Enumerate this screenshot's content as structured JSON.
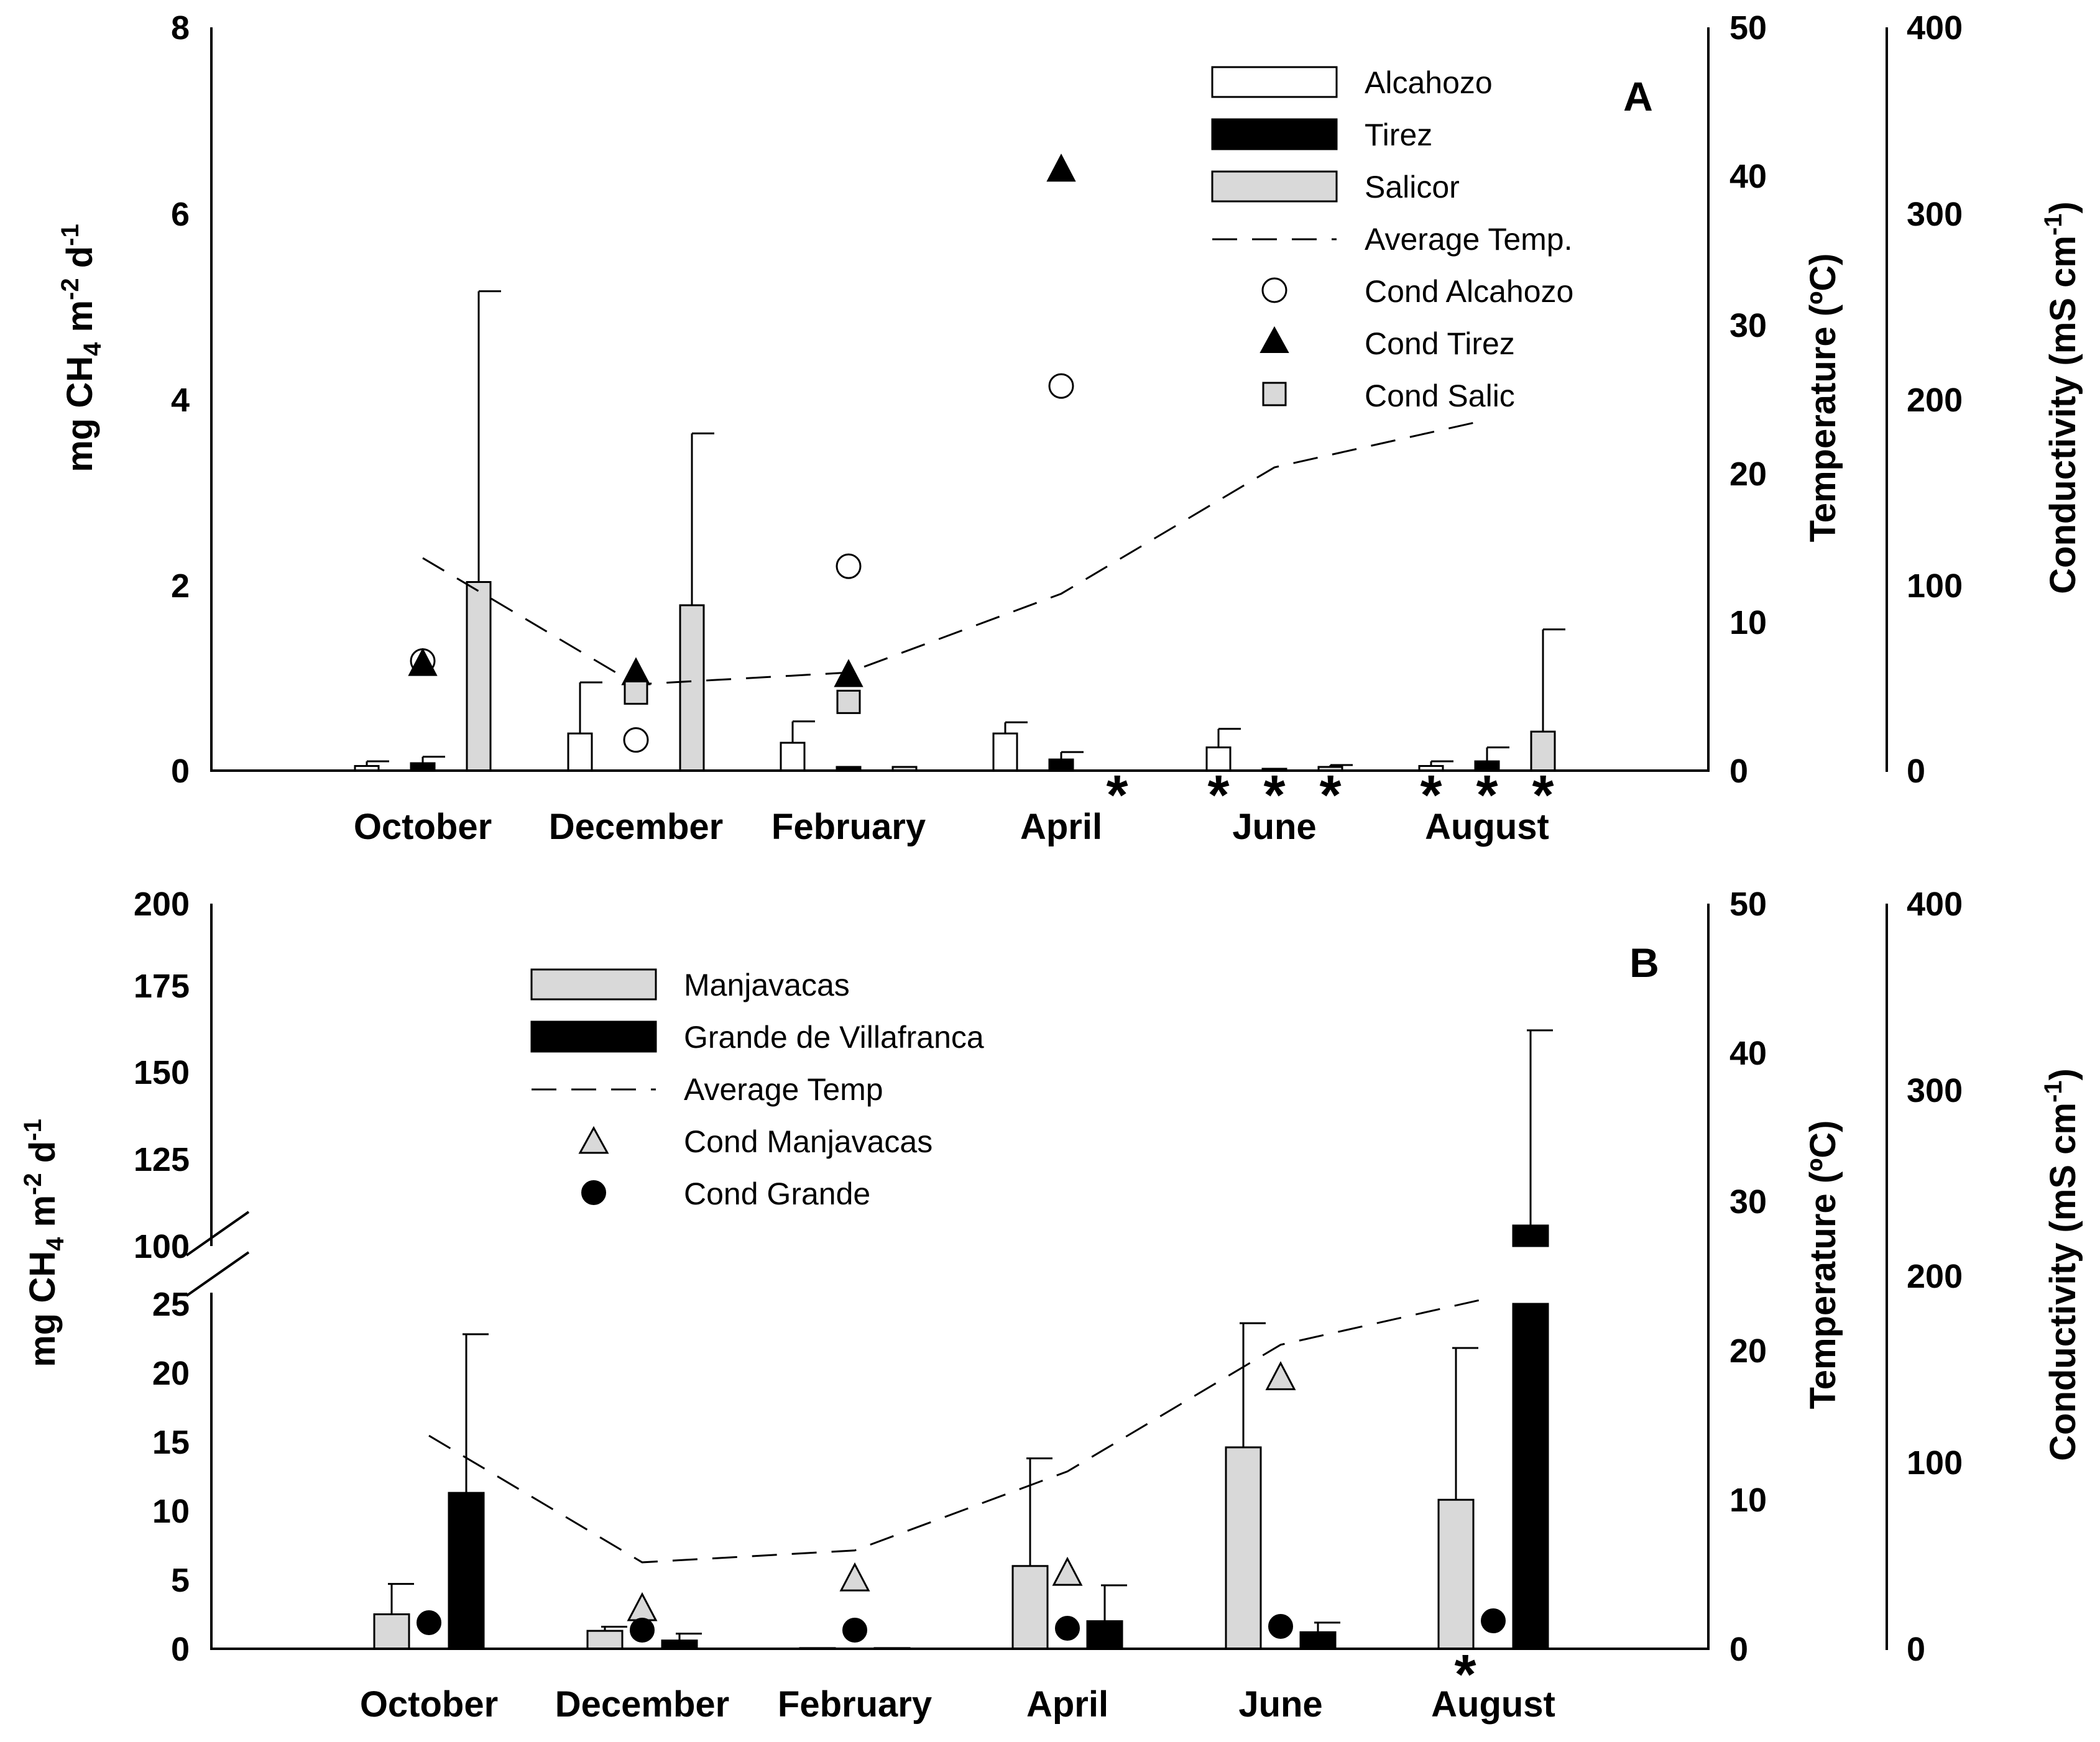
{
  "chart_data": [
    {
      "panel": "A",
      "type": "bar",
      "panel_label": "A",
      "categories": [
        "October",
        "December",
        "February",
        "April",
        "June",
        "August"
      ],
      "ylabel": "mg CH4 m-2 d-1",
      "y_ticks": [
        "0",
        "2",
        "4",
        "6",
        "8"
      ],
      "ylim": [
        0,
        8
      ],
      "series": [
        {
          "name": "Alcahozo",
          "color": "#ffffff",
          "values": [
            0.05,
            0.4,
            0.3,
            0.4,
            0.25,
            0.05
          ],
          "errors": [
            0.05,
            0.55,
            0.23,
            0.12,
            0.2,
            0.05
          ]
        },
        {
          "name": "Tirez",
          "color": "#000000",
          "values": [
            0.08,
            0.0,
            0.04,
            0.12,
            0.02,
            0.1
          ],
          "errors": [
            0.07,
            0.0,
            0.0,
            0.08,
            0.0,
            0.15
          ]
        },
        {
          "name": "Salicor",
          "color": "#d9d9d9",
          "values": [
            2.03,
            1.78,
            0.04,
            0.0,
            0.04,
            0.42
          ],
          "errors": [
            3.13,
            1.85,
            0.0,
            0.0,
            0.02,
            1.1
          ]
        }
      ],
      "temperature": {
        "name": "Average Temp.",
        "axis_label": "Temperature (ºC)",
        "y_ticks": [
          "0",
          "10",
          "20",
          "30",
          "40",
          "50"
        ],
        "ylim": [
          0,
          50
        ],
        "values": [
          14.3,
          5.8,
          6.6,
          11.9,
          20.4,
          23.6
        ]
      },
      "conductivity": {
        "axis_label": "Conductivity (mS cm-1)",
        "y_ticks": [
          "0",
          "100",
          "200",
          "300",
          "400"
        ],
        "ylim": [
          0,
          400
        ],
        "series": [
          {
            "name": "Cond Alcahozo",
            "marker": "circle-open",
            "values": [
              59,
              16.5,
              110,
              207,
              null,
              null
            ]
          },
          {
            "name": "Cond Tirez",
            "marker": "triangle-filled",
            "values": [
              58,
              53,
              52,
              324,
              null,
              null
            ]
          },
          {
            "name": "Cond Salic",
            "marker": "square-gray",
            "values": [
              null,
              42,
              37,
              null,
              null,
              null
            ]
          }
        ]
      },
      "significance_marks": [
        {
          "category": "April",
          "text": "*",
          "count": 1
        },
        {
          "category": "June",
          "text": "*",
          "count": 3
        },
        {
          "category": "August",
          "text": "*",
          "count": 3
        }
      ],
      "legend": [
        "Alcahozo",
        "Tirez",
        "Salicor",
        "Average Temp.",
        "Cond Alcahozo",
        "Cond Tirez",
        "Cond Salic"
      ],
      "legend_position": "top-right"
    },
    {
      "panel": "B",
      "type": "bar",
      "panel_label": "B",
      "categories": [
        "October",
        "December",
        "February",
        "April",
        "June",
        "August"
      ],
      "ylabel": "mg CH4 m-2 d-1",
      "y_ticks_lower": [
        "0",
        "5",
        "10",
        "15",
        "20",
        "25"
      ],
      "y_ticks_upper": [
        "100",
        "125",
        "150",
        "175",
        "200"
      ],
      "ylim_lower": [
        0,
        25
      ],
      "ylim_upper": [
        100,
        200
      ],
      "axis_break": "between 25 and 100",
      "series": [
        {
          "name": "Manjavacas",
          "color": "#d9d9d9",
          "values": [
            2.5,
            1.3,
            0.05,
            6.0,
            14.6,
            10.8
          ],
          "errors": [
            2.2,
            0.3,
            0.0,
            7.8,
            9.0,
            11.0
          ]
        },
        {
          "name": "Grande de Villafranca",
          "color": "#000000",
          "values": [
            11.3,
            0.6,
            0.05,
            2.0,
            1.2,
            106
          ],
          "errors": [
            11.5,
            0.5,
            0.0,
            2.6,
            0.7,
            57
          ]
        }
      ],
      "temperature": {
        "name": "Average Temp",
        "axis_label": "Temperature (ºC)",
        "y_ticks": [
          "0",
          "10",
          "20",
          "30",
          "40",
          "50"
        ],
        "ylim": [
          0,
          50
        ],
        "values": [
          14.3,
          5.8,
          6.6,
          11.9,
          20.4,
          23.6
        ]
      },
      "conductivity": {
        "axis_label": "Conductivity (mS cm-1)",
        "y_ticks": [
          "0",
          "100",
          "200",
          "300",
          "400"
        ],
        "ylim": [
          0,
          400
        ],
        "series": [
          {
            "name": "Cond Manjavacas",
            "marker": "triangle-gray",
            "values": [
              null,
              22,
              38,
              41,
              146,
              null
            ]
          },
          {
            "name": "Cond Grande",
            "marker": "circle-filled",
            "values": [
              14,
              10,
              10,
              11,
              12,
              15
            ]
          }
        ]
      },
      "significance_marks": [
        {
          "category": "August",
          "text": "*",
          "count": 1
        }
      ],
      "legend": [
        "Manjavacas",
        "Grande de Villafranca",
        "Average Temp",
        "Cond Manjavacas",
        "Cond Grande"
      ],
      "legend_position": "top-center"
    }
  ]
}
